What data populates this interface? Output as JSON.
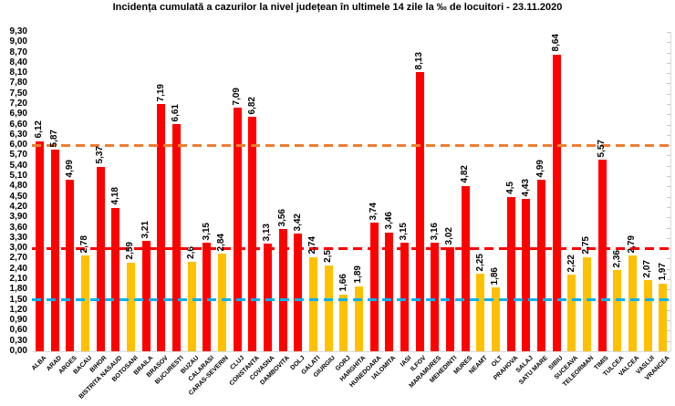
{
  "title": "Incidența cumulată a cazurilor la nivel județean în ultimele 14 zile la ‰ de locuitori - 23.11.2020",
  "colors": {
    "bar_above_threshold": "#FF0000",
    "bar_below_threshold": "#FFC000",
    "reference_orange": "#ED7D31",
    "reference_red": "#FF0000",
    "reference_blue": "#00B0F0",
    "axis_tick_gray": "#C9C9C9",
    "label_black": "#000000"
  },
  "chart_data": {
    "type": "bar",
    "title": "Incidența cumulată a cazurilor la nivel județean în ultimele 14 zile la ‰ de locuitori - 23.11.2020",
    "xlabel": "",
    "ylabel": "",
    "ylim": [
      0,
      9.3
    ],
    "ytick_step": 0.3,
    "grid": false,
    "legend": null,
    "categories": [
      "ALBA",
      "ARAD",
      "ARGES",
      "BACAU",
      "BIHOR",
      "BISTRITA NASAUD",
      "BOTOSANI",
      "BRAILA",
      "BRASOV",
      "BUCURESTI",
      "BUZAU",
      "CALARASI",
      "CARAS-SEVERIN",
      "CLUJ",
      "CONSTANTA",
      "COVASNA",
      "DAMBOVITA",
      "DOLJ",
      "GALATI",
      "GIURGIU",
      "GORJ",
      "HARGHITA",
      "HUNEDOARA",
      "IALOMITA",
      "IASI",
      "ILFOV",
      "MARAMURES",
      "MEHEDINTI",
      "MURES",
      "NEAMT",
      "OLT",
      "PRAHOVA",
      "SALAJ",
      "SATU MARE",
      "SIBIU",
      "SUCEAVA",
      "TELEORMAN",
      "TIMIS",
      "TULCEA",
      "VALCEA",
      "VASLUI",
      "VRANCEA"
    ],
    "values": [
      6.12,
      5.87,
      4.99,
      2.78,
      5.37,
      4.18,
      2.59,
      3.21,
      7.19,
      6.61,
      2.6,
      3.15,
      2.84,
      7.09,
      6.82,
      3.13,
      3.56,
      3.42,
      2.74,
      2.5,
      1.66,
      1.89,
      3.74,
      3.46,
      3.15,
      8.13,
      3.16,
      3.02,
      4.82,
      2.25,
      1.86,
      4.5,
      4.43,
      4.99,
      8.64,
      2.22,
      2.75,
      5.57,
      2.36,
      2.79,
      2.07,
      1.97
    ],
    "value_labels": [
      "6,12",
      "5,87",
      "4,99",
      "2,78",
      "5,37",
      "4,18",
      "2,59",
      "3,21",
      "7,19",
      "6,61",
      "2,6",
      "3,15",
      "2,84",
      "7,09",
      "6,82",
      "3,13",
      "3,56",
      "3,42",
      "2,74",
      "2,5",
      "1,66",
      "1,89",
      "3,74",
      "3,46",
      "3,15",
      "8,13",
      "3,16",
      "3,02",
      "4,82",
      "2,25",
      "1,86",
      "4,5",
      "4,43",
      "4,99",
      "8,64",
      "2,22",
      "2,75",
      "5,57",
      "2,36",
      "2,79",
      "2,07",
      "1,97"
    ],
    "bar_color_rule": "red #FF0000 if value >= 3.00 else yellow #FFC000",
    "bar_colors": [
      "#FF0000",
      "#FF0000",
      "#FF0000",
      "#FFC000",
      "#FF0000",
      "#FF0000",
      "#FFC000",
      "#FF0000",
      "#FF0000",
      "#FF0000",
      "#FFC000",
      "#FF0000",
      "#FFC000",
      "#FF0000",
      "#FF0000",
      "#FF0000",
      "#FF0000",
      "#FF0000",
      "#FFC000",
      "#FFC000",
      "#FFC000",
      "#FFC000",
      "#FF0000",
      "#FF0000",
      "#FF0000",
      "#FF0000",
      "#FF0000",
      "#FF0000",
      "#FF0000",
      "#FFC000",
      "#FFC000",
      "#FF0000",
      "#FF0000",
      "#FF0000",
      "#FF0000",
      "#FFC000",
      "#FFC000",
      "#FF0000",
      "#FFC000",
      "#FFC000",
      "#FFC000",
      "#FFC000"
    ],
    "ytick_labels": [
      "9,30",
      "9,00",
      "8,70",
      "8,40",
      "8,10",
      "7,80",
      "7,50",
      "7,20",
      "6,90",
      "6,60",
      "6,30",
      "6,00",
      "5,70",
      "5,40",
      "5,10",
      "4,80",
      "4,50",
      "4,20",
      "3,90",
      "3,60",
      "3,30",
      "3,00",
      "2,70",
      "2,40",
      "2,10",
      "1,80",
      "1,50",
      "1,20",
      "0,90",
      "0,60",
      "0,30",
      "0,00"
    ],
    "reference_lines": [
      {
        "value": 6.0,
        "color": "#ED7D31",
        "style": "dashed"
      },
      {
        "value": 3.0,
        "color": "#FF0000",
        "style": "dashed"
      },
      {
        "value": 1.5,
        "color": "#00B0F0",
        "style": "dashed"
      }
    ]
  }
}
